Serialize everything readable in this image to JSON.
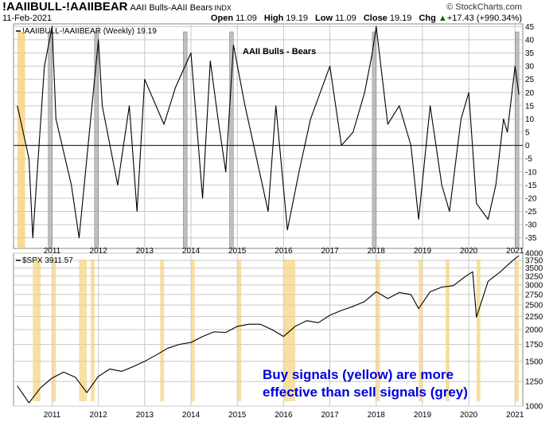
{
  "header": {
    "symbol": "!AAIIBULL-!AAIIBEAR",
    "name": "AAII Bulls-AAII Bears",
    "exchange": "INDX",
    "brand": "© StockCharts.com",
    "date": "11-Feb-2021",
    "open_label": "Open",
    "open": "11.09",
    "high_label": "High",
    "high": "19.19",
    "low_label": "Low",
    "low": "11.09",
    "close_label": "Close",
    "close": "19.19",
    "chg_label": "Chg",
    "chg": "+17.43 (+990.34%)",
    "chg_marker": "▲"
  },
  "colors": {
    "grid": "#c8c8c8",
    "line": "#000000",
    "zero_line": "#000080",
    "buy_band": "#f5d27a",
    "sell_band": "#b4b4b4",
    "annotation": "#0000dd"
  },
  "chart_data": [
    {
      "type": "line",
      "panel": "top",
      "legend_label": "!AAIIBULL-!AAIIBEAR (Weekly) 19.19",
      "title": "AAII Bulls - Bears",
      "x_tick_labels": [
        "2011",
        "2012",
        "2013",
        "2014",
        "2015",
        "2016",
        "2017",
        "2018",
        "2019",
        "2020",
        "2021"
      ],
      "xlim": [
        "2010-03",
        "2021-03"
      ],
      "ylim": [
        -39,
        46
      ],
      "y_ticks": [
        -35,
        -30,
        -25,
        -20,
        -15,
        -10,
        -5,
        0,
        5,
        10,
        15,
        20,
        25,
        30,
        35,
        40,
        45
      ],
      "reference_line": 0,
      "grid": true,
      "series": [
        {
          "x": [
            "2010-04",
            "2010-07",
            "2010-08",
            "2010-11",
            "2011-01",
            "2011-02",
            "2011-06",
            "2011-08",
            "2011-10",
            "2012-01",
            "2012-02",
            "2012-06",
            "2012-09",
            "2012-11",
            "2013-01",
            "2013-06",
            "2013-09",
            "2014-01",
            "2014-04",
            "2014-06",
            "2014-08",
            "2014-10",
            "2014-12",
            "2015-03",
            "2015-06",
            "2015-09",
            "2015-11",
            "2016-02",
            "2016-05",
            "2016-08",
            "2016-11",
            "2017-01",
            "2017-04",
            "2017-07",
            "2017-10",
            "2017-12",
            "2018-01",
            "2018-04",
            "2018-07",
            "2018-10",
            "2018-12",
            "2019-03",
            "2019-06",
            "2019-08",
            "2019-11",
            "2020-01",
            "2020-03",
            "2020-06",
            "2020-08",
            "2020-10",
            "2020-11",
            "2021-01",
            "2021-02"
          ],
          "y": [
            15,
            -5,
            -35,
            30,
            45,
            10,
            -15,
            -35,
            -5,
            40,
            15,
            -15,
            15,
            -25,
            25,
            8,
            22,
            35,
            -20,
            32,
            10,
            -10,
            38,
            15,
            -5,
            -25,
            15,
            -32,
            -10,
            10,
            22,
            30,
            0,
            5,
            20,
            35,
            45,
            8,
            15,
            0,
            -28,
            15,
            -15,
            -25,
            10,
            20,
            -22,
            -28,
            -15,
            10,
            5,
            30,
            19.19
          ]
        }
      ],
      "buy_signals": [
        [
          "2010-04",
          "2010-06"
        ]
      ],
      "sell_signals": [
        [
          "2010-12",
          "2011-01"
        ],
        [
          "2011-12",
          "2012-01"
        ],
        [
          "2013-11",
          "2013-12"
        ],
        [
          "2014-11",
          "2014-12"
        ],
        [
          "2017-12",
          "2018-01"
        ],
        [
          "2021-01",
          "2021-02"
        ]
      ]
    },
    {
      "type": "line",
      "panel": "bottom",
      "legend_label": "$SPX 3911.57",
      "x_tick_labels": [
        "2011",
        "2012",
        "2013",
        "2014",
        "2015",
        "2016",
        "2017",
        "2018",
        "2019",
        "2020",
        "2021"
      ],
      "xlim": [
        "2010-03",
        "2021-03"
      ],
      "ylim": [
        1000,
        4000
      ],
      "y_scale": "log",
      "y_ticks": [
        1000,
        1250,
        1500,
        1750,
        2000,
        2250,
        2500,
        2750,
        3000,
        3250,
        3500,
        3750,
        4000
      ],
      "grid": true,
      "series": [
        {
          "x": [
            "2010-04",
            "2010-07",
            "2010-10",
            "2011-01",
            "2011-04",
            "2011-07",
            "2011-10",
            "2012-01",
            "2012-04",
            "2012-07",
            "2012-10",
            "2013-01",
            "2013-04",
            "2013-07",
            "2013-10",
            "2014-01",
            "2014-04",
            "2014-07",
            "2014-10",
            "2015-01",
            "2015-04",
            "2015-07",
            "2015-10",
            "2016-01",
            "2016-04",
            "2016-07",
            "2016-10",
            "2017-01",
            "2017-04",
            "2017-07",
            "2017-10",
            "2018-01",
            "2018-04",
            "2018-07",
            "2018-10",
            "2018-12",
            "2019-03",
            "2019-06",
            "2019-09",
            "2019-12",
            "2020-02",
            "2020-03",
            "2020-06",
            "2020-09",
            "2020-12",
            "2021-02"
          ],
          "y": [
            1200,
            1030,
            1180,
            1290,
            1360,
            1300,
            1130,
            1310,
            1400,
            1370,
            1430,
            1500,
            1590,
            1690,
            1750,
            1780,
            1880,
            1960,
            1950,
            2060,
            2100,
            2100,
            2000,
            1880,
            2060,
            2170,
            2130,
            2280,
            2380,
            2470,
            2580,
            2820,
            2650,
            2800,
            2750,
            2420,
            2820,
            2940,
            2980,
            3230,
            3380,
            2240,
            3100,
            3360,
            3700,
            3911.57
          ]
        }
      ]
    }
  ],
  "bottom_signal_spans": [
    [
      "2010-08",
      "2010-10"
    ],
    [
      "2011-01",
      "2011-02"
    ],
    [
      "2011-08",
      "2011-10"
    ],
    [
      "2011-11",
      "2011-12"
    ],
    [
      "2013-05",
      "2013-06"
    ],
    [
      "2014-01",
      "2014-02"
    ],
    [
      "2015-01",
      "2015-02"
    ],
    [
      "2016-01",
      "2016-03"
    ],
    [
      "2016-03",
      "2016-04"
    ],
    [
      "2018-01",
      "2018-02"
    ],
    [
      "2018-12",
      "2019-01"
    ],
    [
      "2019-07",
      "2019-08"
    ],
    [
      "2020-03",
      "2020-04"
    ],
    [
      "2021-01",
      "2021-02"
    ]
  ],
  "annotation": {
    "line1": "Buy signals (yellow) are more",
    "line2": "effective than sell signals (grey)"
  }
}
